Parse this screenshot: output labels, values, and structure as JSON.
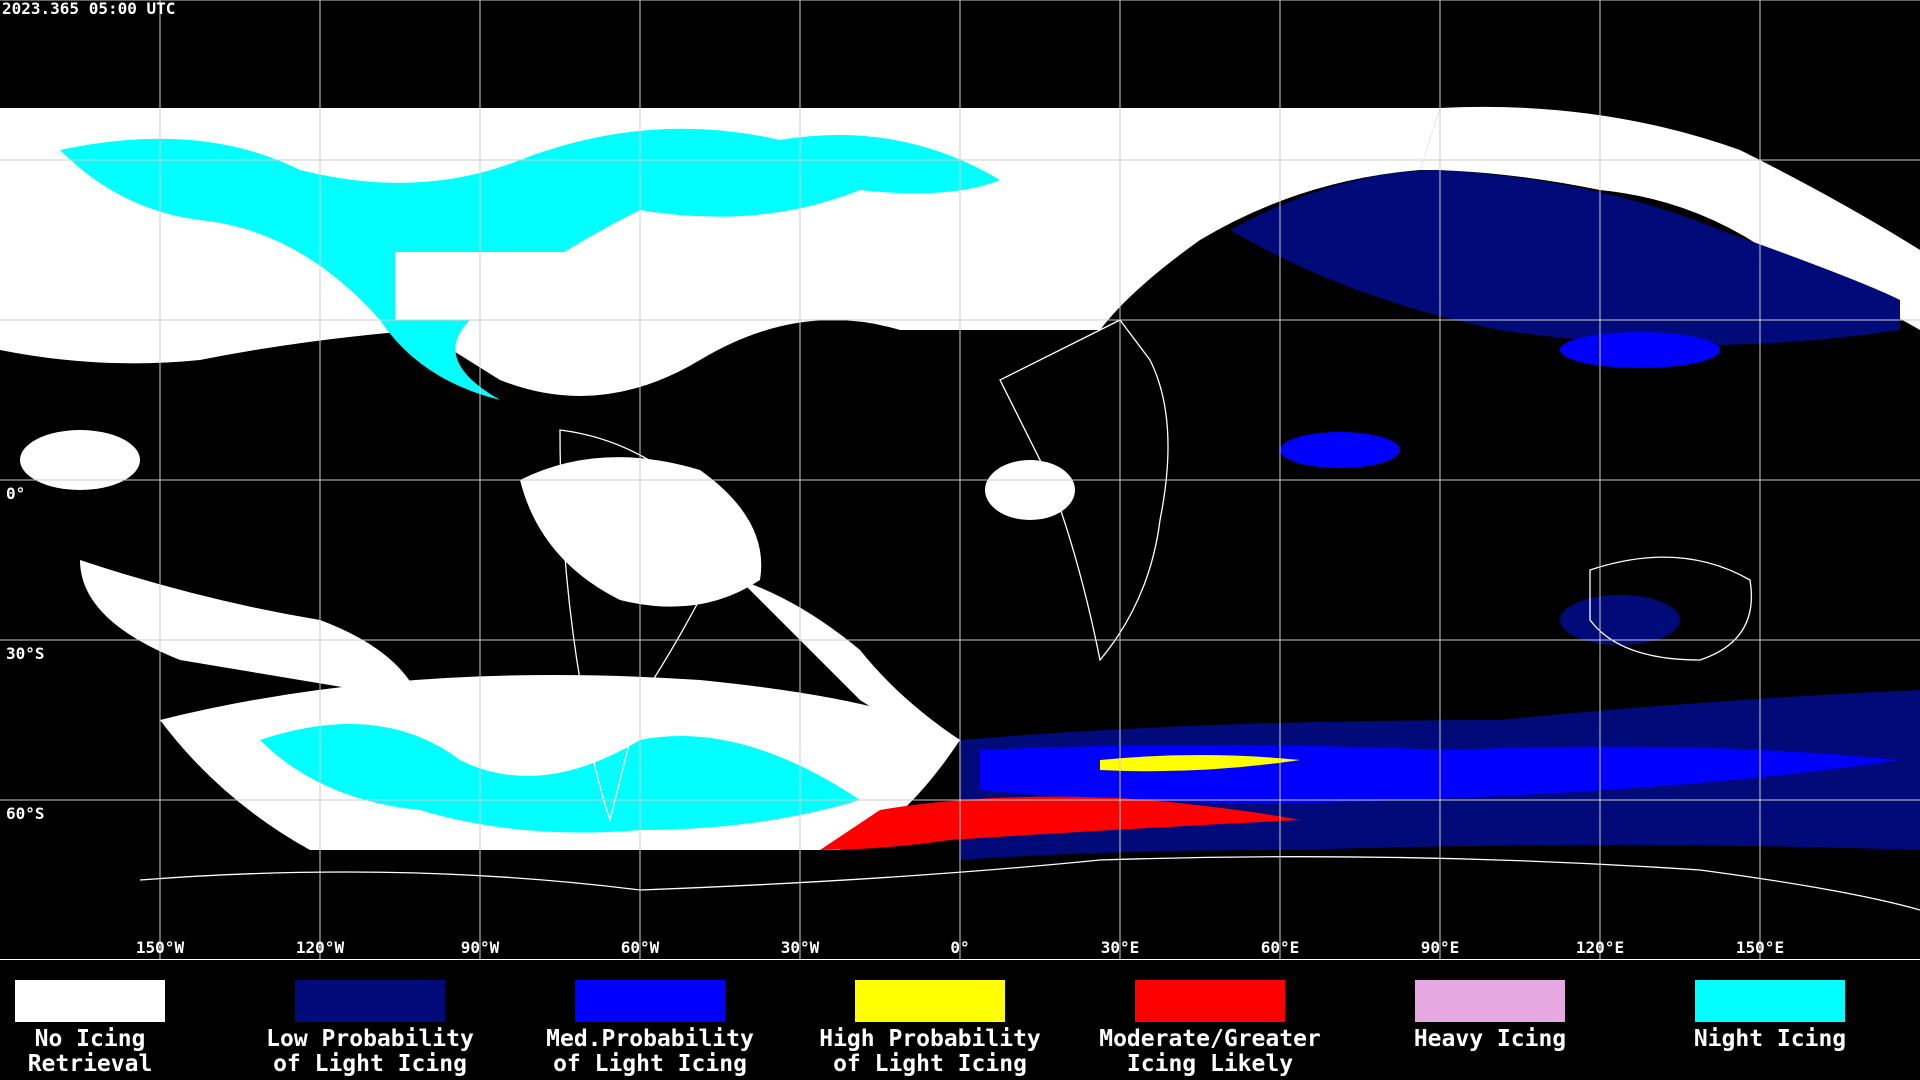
{
  "header": {
    "timestamp": "2023.365 05:00 UTC"
  },
  "map": {
    "longitude_labels": [
      "150°W",
      "120°W",
      "90°W",
      "60°W",
      "30°W",
      "0°",
      "30°E",
      "60°E",
      "90°E",
      "120°E",
      "150°E"
    ],
    "latitude_labels": [
      "0°",
      "30°S",
      "60°S"
    ]
  },
  "legend": [
    {
      "lines": [
        "No Icing",
        "Retrieval"
      ],
      "color": "#ffffff"
    },
    {
      "lines": [
        "Low Probability",
        "of Light Icing"
      ],
      "color": "#000a78"
    },
    {
      "lines": [
        "Med.Probability",
        "of Light Icing"
      ],
      "color": "#0000ff"
    },
    {
      "lines": [
        "High Probability",
        "of Light Icing"
      ],
      "color": "#ffff00"
    },
    {
      "lines": [
        "Moderate/Greater",
        "Icing Likely"
      ],
      "color": "#ff0000"
    },
    {
      "lines": [
        "Heavy Icing"
      ],
      "color": "#e6a8e0"
    },
    {
      "lines": [
        "Night Icing"
      ],
      "color": "#00ffff"
    }
  ]
}
